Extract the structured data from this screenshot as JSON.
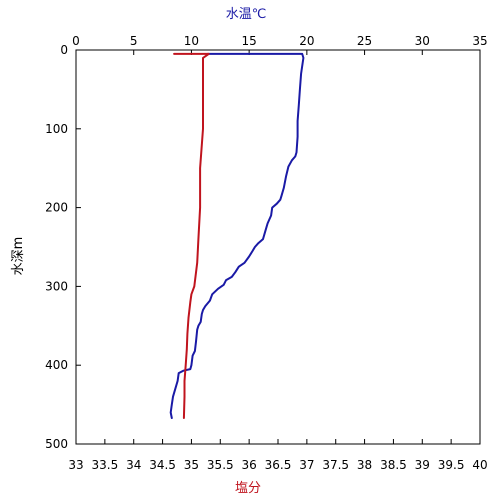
{
  "chart_data": {
    "type": "line",
    "title": "",
    "top_axis": {
      "label": "水温℃",
      "label_color": "#1a1aa6",
      "range": [
        0,
        35
      ],
      "ticks": [
        "0",
        "5",
        "10",
        "15",
        "20",
        "25",
        "30",
        "35"
      ]
    },
    "bottom_axis": {
      "label": "塩分",
      "label_color": "#c0141e",
      "range": [
        33,
        40
      ],
      "ticks": [
        "33",
        "33.5",
        "34",
        "34.5",
        "35",
        "35.5",
        "36",
        "36.5",
        "37",
        "37.5",
        "38",
        "38.5",
        "39",
        "39.5",
        "40"
      ]
    },
    "y_axis": {
      "label": "水深m",
      "range": [
        0,
        500
      ],
      "inverted": true,
      "ticks": [
        "0",
        "100",
        "200",
        "300",
        "400",
        "500"
      ]
    },
    "grid": false,
    "series": [
      {
        "axis": "top",
        "color": "#1a1aa6",
        "points": [
          [
            11.4,
            5
          ],
          [
            19.6,
            5
          ],
          [
            19.7,
            10
          ],
          [
            19.5,
            30
          ],
          [
            19.4,
            50
          ],
          [
            19.3,
            70
          ],
          [
            19.2,
            90
          ],
          [
            19.2,
            110
          ],
          [
            19.1,
            130
          ],
          [
            19.0,
            135
          ],
          [
            18.7,
            140
          ],
          [
            18.4,
            148
          ],
          [
            18.2,
            160
          ],
          [
            18.0,
            175
          ],
          [
            17.8,
            185
          ],
          [
            17.7,
            190
          ],
          [
            17.4,
            195
          ],
          [
            17.0,
            200
          ],
          [
            16.9,
            210
          ],
          [
            16.6,
            220
          ],
          [
            16.4,
            230
          ],
          [
            16.2,
            240
          ],
          [
            15.8,
            245
          ],
          [
            15.5,
            250
          ],
          [
            15.3,
            255
          ],
          [
            15.0,
            262
          ],
          [
            14.6,
            270
          ],
          [
            14.1,
            275
          ],
          [
            13.8,
            282
          ],
          [
            13.5,
            288
          ],
          [
            13.0,
            292
          ],
          [
            12.8,
            298
          ],
          [
            12.3,
            303
          ],
          [
            11.8,
            310
          ],
          [
            11.6,
            318
          ],
          [
            11.2,
            325
          ],
          [
            11.0,
            330
          ],
          [
            10.9,
            335
          ],
          [
            10.8,
            345
          ],
          [
            10.6,
            350
          ],
          [
            10.5,
            355
          ],
          [
            10.4,
            370
          ],
          [
            10.3,
            382
          ],
          [
            10.1,
            388
          ],
          [
            10.0,
            400
          ],
          [
            9.9,
            405
          ],
          [
            9.3,
            407
          ],
          [
            8.9,
            410
          ],
          [
            8.8,
            420
          ],
          [
            8.6,
            430
          ],
          [
            8.4,
            440
          ],
          [
            8.3,
            450
          ],
          [
            8.2,
            460
          ],
          [
            8.3,
            467
          ]
        ]
      },
      {
        "axis": "bottom",
        "color": "#c0141e",
        "points": [
          [
            34.7,
            5
          ],
          [
            35.3,
            5
          ],
          [
            35.2,
            10
          ],
          [
            35.2,
            30
          ],
          [
            35.2,
            60
          ],
          [
            35.2,
            100
          ],
          [
            35.15,
            150
          ],
          [
            35.15,
            200
          ],
          [
            35.12,
            240
          ],
          [
            35.1,
            270
          ],
          [
            35.05,
            300
          ],
          [
            35.0,
            310
          ],
          [
            34.98,
            320
          ],
          [
            34.95,
            340
          ],
          [
            34.93,
            360
          ],
          [
            34.92,
            380
          ],
          [
            34.9,
            400
          ],
          [
            34.88,
            420
          ],
          [
            34.88,
            440
          ],
          [
            34.87,
            467
          ]
        ]
      }
    ]
  }
}
